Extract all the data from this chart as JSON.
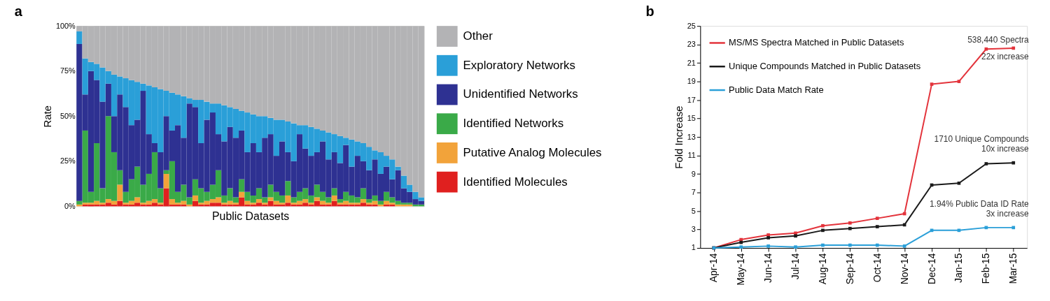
{
  "chart_data": [
    {
      "type": "bar",
      "title": "a",
      "stacked": true,
      "xlabel": "Public Datasets",
      "ylabel": "Rate",
      "legend": "right",
      "grid": false,
      "ylim": [
        0,
        100
      ],
      "yticks": [
        {
          "value": 0,
          "label": "0%"
        },
        {
          "value": 25,
          "label": "25%"
        },
        {
          "value": 50,
          "label": "50%"
        },
        {
          "value": 75,
          "label": "75%"
        },
        {
          "value": 100,
          "label": "100%"
        }
      ],
      "categories": [
        null,
        null,
        null,
        null,
        null,
        null,
        null,
        null,
        null,
        null,
        null,
        null,
        null,
        null,
        null,
        null,
        null,
        null,
        null,
        null,
        null,
        null,
        null,
        null,
        null,
        null,
        null,
        null,
        null,
        null,
        null,
        null,
        null,
        null,
        null,
        null,
        null,
        null,
        null,
        null,
        null,
        null,
        null,
        null,
        null,
        null,
        null,
        null,
        null,
        null,
        null,
        null,
        null,
        null,
        null,
        null,
        null,
        null,
        null,
        null
      ],
      "series": [
        {
          "name": "Identified Molecules",
          "color": "#e0201f",
          "values": [
            0,
            1,
            1,
            1,
            1,
            2,
            1,
            3,
            1,
            1,
            2,
            1,
            1,
            2,
            1,
            10,
            1,
            1,
            1,
            0,
            3,
            1,
            1,
            2,
            2,
            1,
            1,
            1,
            5,
            1,
            1,
            2,
            1,
            3,
            1,
            1,
            2,
            1,
            1,
            2,
            1,
            3,
            1,
            1,
            3,
            1,
            1,
            1,
            1,
            2,
            1,
            1,
            0,
            1,
            1,
            0,
            0,
            0,
            0,
            0
          ]
        },
        {
          "name": "Putative Analog Molecules",
          "color": "#f2a33a",
          "values": [
            1,
            1,
            1,
            2,
            1,
            2,
            2,
            9,
            1,
            2,
            3,
            1,
            2,
            2,
            1,
            8,
            3,
            1,
            2,
            1,
            3,
            1,
            2,
            2,
            3,
            1,
            2,
            1,
            3,
            2,
            1,
            2,
            1,
            2,
            2,
            1,
            4,
            1,
            2,
            2,
            1,
            2,
            2,
            1,
            3,
            1,
            2,
            1,
            1,
            2,
            1,
            2,
            1,
            2,
            1,
            1,
            1,
            1,
            0,
            0
          ]
        },
        {
          "name": "Identified Networks",
          "color": "#3aaa48",
          "values": [
            2,
            40,
            6,
            32,
            8,
            46,
            27,
            8,
            6,
            12,
            17,
            10,
            15,
            26,
            8,
            2,
            21,
            6,
            9,
            4,
            9,
            8,
            5,
            8,
            15,
            4,
            7,
            3,
            7,
            5,
            4,
            6,
            3,
            7,
            5,
            4,
            8,
            3,
            5,
            6,
            4,
            7,
            5,
            3,
            4,
            2,
            5,
            4,
            3,
            6,
            2,
            3,
            2,
            5,
            3,
            2,
            1,
            1,
            1,
            1
          ]
        },
        {
          "name": "Unidentified Networks",
          "color": "#2e3192",
          "values": [
            87,
            20,
            67,
            35,
            48,
            18,
            20,
            42,
            47,
            30,
            26,
            52,
            22,
            5,
            20,
            30,
            17,
            37,
            26,
            52,
            40,
            25,
            40,
            40,
            20,
            30,
            34,
            33,
            27,
            22,
            29,
            20,
            33,
            28,
            20,
            30,
            16,
            20,
            32,
            22,
            22,
            18,
            28,
            21,
            20,
            20,
            26,
            16,
            23,
            15,
            16,
            20,
            15,
            14,
            10,
            17,
            8,
            6,
            3,
            2
          ]
        },
        {
          "name": "Exploratory Networks",
          "color": "#2a9fd8",
          "values": [
            7,
            20,
            5,
            9,
            19,
            7,
            23,
            10,
            16,
            25,
            21,
            4,
            27,
            31,
            35,
            14,
            21,
            17,
            23,
            3,
            4,
            24,
            10,
            5,
            17,
            20,
            11,
            16,
            11,
            22,
            16,
            20,
            12,
            9,
            20,
            12,
            17,
            21,
            5,
            13,
            16,
            13,
            6,
            15,
            10,
            15,
            4,
            15,
            8,
            10,
            13,
            5,
            12,
            6,
            11,
            2,
            7,
            4,
            4,
            2
          ]
        },
        {
          "name": "Other",
          "color": "#b3b3b5",
          "values": [
            3,
            18,
            20,
            21,
            23,
            25,
            27,
            28,
            29,
            30,
            31,
            32,
            33,
            34,
            35,
            36,
            37,
            38,
            39,
            40,
            41,
            41,
            42,
            43,
            43,
            44,
            45,
            46,
            47,
            48,
            49,
            50,
            50,
            51,
            52,
            52,
            53,
            54,
            55,
            55,
            56,
            57,
            58,
            59,
            60,
            61,
            62,
            63,
            64,
            65,
            67,
            69,
            70,
            72,
            74,
            78,
            83,
            88,
            92,
            95
          ]
        }
      ]
    },
    {
      "type": "line",
      "title": "b",
      "ylabel": "Fold Increase",
      "legend": "top left",
      "grid": false,
      "marker": "square",
      "line_style": "solid",
      "ylim": [
        1,
        25
      ],
      "yticks": [
        1,
        3,
        5,
        7,
        9,
        11,
        13,
        15,
        17,
        19,
        21,
        23,
        25
      ],
      "categories": [
        "Apr-14",
        "May-14",
        "Jun-14",
        "Jul-14",
        "Aug-14",
        "Sep-14",
        "Oct-14",
        "Nov-14",
        "Dec-14",
        "Jan-15",
        "Feb-15",
        "Mar-15"
      ],
      "series": [
        {
          "name": "MS/MS Spectra Matched in Public Datasets",
          "color": "#e3333b",
          "values": [
            1,
            1.9,
            2.4,
            2.6,
            3.4,
            3.7,
            4.2,
            4.7,
            18.7,
            19.0,
            22.5,
            22.6
          ]
        },
        {
          "name": "Unique Compounds Matched in Public Datasets",
          "color": "#1a1a1a",
          "values": [
            1,
            1.6,
            2.1,
            2.3,
            2.9,
            3.1,
            3.3,
            3.5,
            7.8,
            8.0,
            10.1,
            10.2
          ]
        },
        {
          "name": "Public Data Match Rate",
          "color": "#2a9fd8",
          "values": [
            1,
            1.1,
            1.2,
            1.1,
            1.3,
            1.3,
            1.3,
            1.2,
            2.9,
            2.9,
            3.2,
            3.2
          ]
        }
      ],
      "annotations": [
        {
          "text": "538,440 Spectra",
          "x": "Mar-15",
          "y": 22.6
        },
        {
          "text": "22x increase",
          "x": "Mar-15",
          "y": 22.6
        },
        {
          "text": "1710 Unique Compounds",
          "x": "Mar-15",
          "y": 10.2
        },
        {
          "text": "10x increase",
          "x": "Mar-15",
          "y": 10.2
        },
        {
          "text": "1.94% Public Data ID Rate",
          "x": "Mar-15",
          "y": 3.2
        },
        {
          "text": "3x increase",
          "x": "Mar-15",
          "y": 3.2
        }
      ]
    }
  ]
}
